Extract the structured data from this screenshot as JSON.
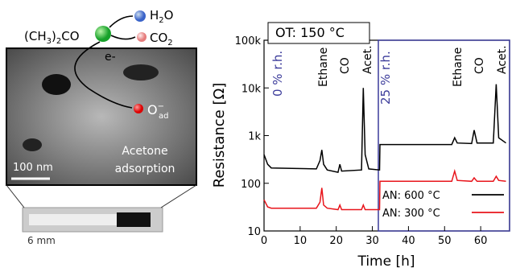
{
  "schematic": {
    "molecule": [
      "(CH",
      "3",
      ")",
      "2",
      "CO"
    ],
    "water": [
      "H",
      "2",
      "O"
    ],
    "co2": [
      "CO",
      "2"
    ],
    "electron": "e-",
    "oxygen": [
      "O",
      "−",
      "ad"
    ],
    "adsorption": [
      "Acetone",
      "adsorption"
    ],
    "scale_sem": "100 nm",
    "scale_photo": "6 mm"
  },
  "chart_data": {
    "type": "line",
    "xlabel": "Time [h]",
    "ylabel": "Resistance [Ω]",
    "log_y": true,
    "annotations": [
      "OT: 150 °C",
      "0 % r.h.",
      "Ethane",
      "CO",
      "Acet.",
      "25 % r.h.",
      "Ethane",
      "CO",
      "Acet."
    ],
    "x": [
      0,
      1,
      2,
      14.5,
      15.5,
      16,
      16.5,
      17.5,
      20.5,
      21,
      21.5,
      27,
      27.5,
      28,
      29,
      32,
      32.1,
      52,
      52.8,
      53.5,
      57.5,
      58.2,
      59,
      63.5,
      64.3,
      65,
      67
    ],
    "series": [
      {
        "name": "AN: 600 °C",
        "color": "#000000",
        "values": [
          400,
          250,
          210,
          200,
          300,
          500,
          250,
          190,
          170,
          250,
          180,
          190,
          10000,
          400,
          200,
          190,
          650,
          650,
          900,
          700,
          680,
          1300,
          700,
          700,
          12000,
          900,
          700
        ]
      },
      {
        "name": "AN: 300 °C",
        "color": "#e8141b",
        "values": [
          45,
          32,
          30,
          30,
          40,
          80,
          35,
          30,
          28,
          35,
          28,
          28,
          35,
          28,
          28,
          28,
          110,
          110,
          180,
          115,
          110,
          130,
          110,
          110,
          140,
          115,
          110
        ]
      }
    ],
    "xlim": [
      0,
      68
    ],
    "xticks": [
      0,
      10,
      20,
      30,
      40,
      50,
      60
    ],
    "ylim": [
      10,
      100000
    ],
    "yticks": [
      10,
      100,
      {
        "value": 1000,
        "label": "1k"
      },
      {
        "value": 10000,
        "label": "10k"
      },
      {
        "value": 100000,
        "label": "100k"
      }
    ],
    "legend": "lower right"
  }
}
